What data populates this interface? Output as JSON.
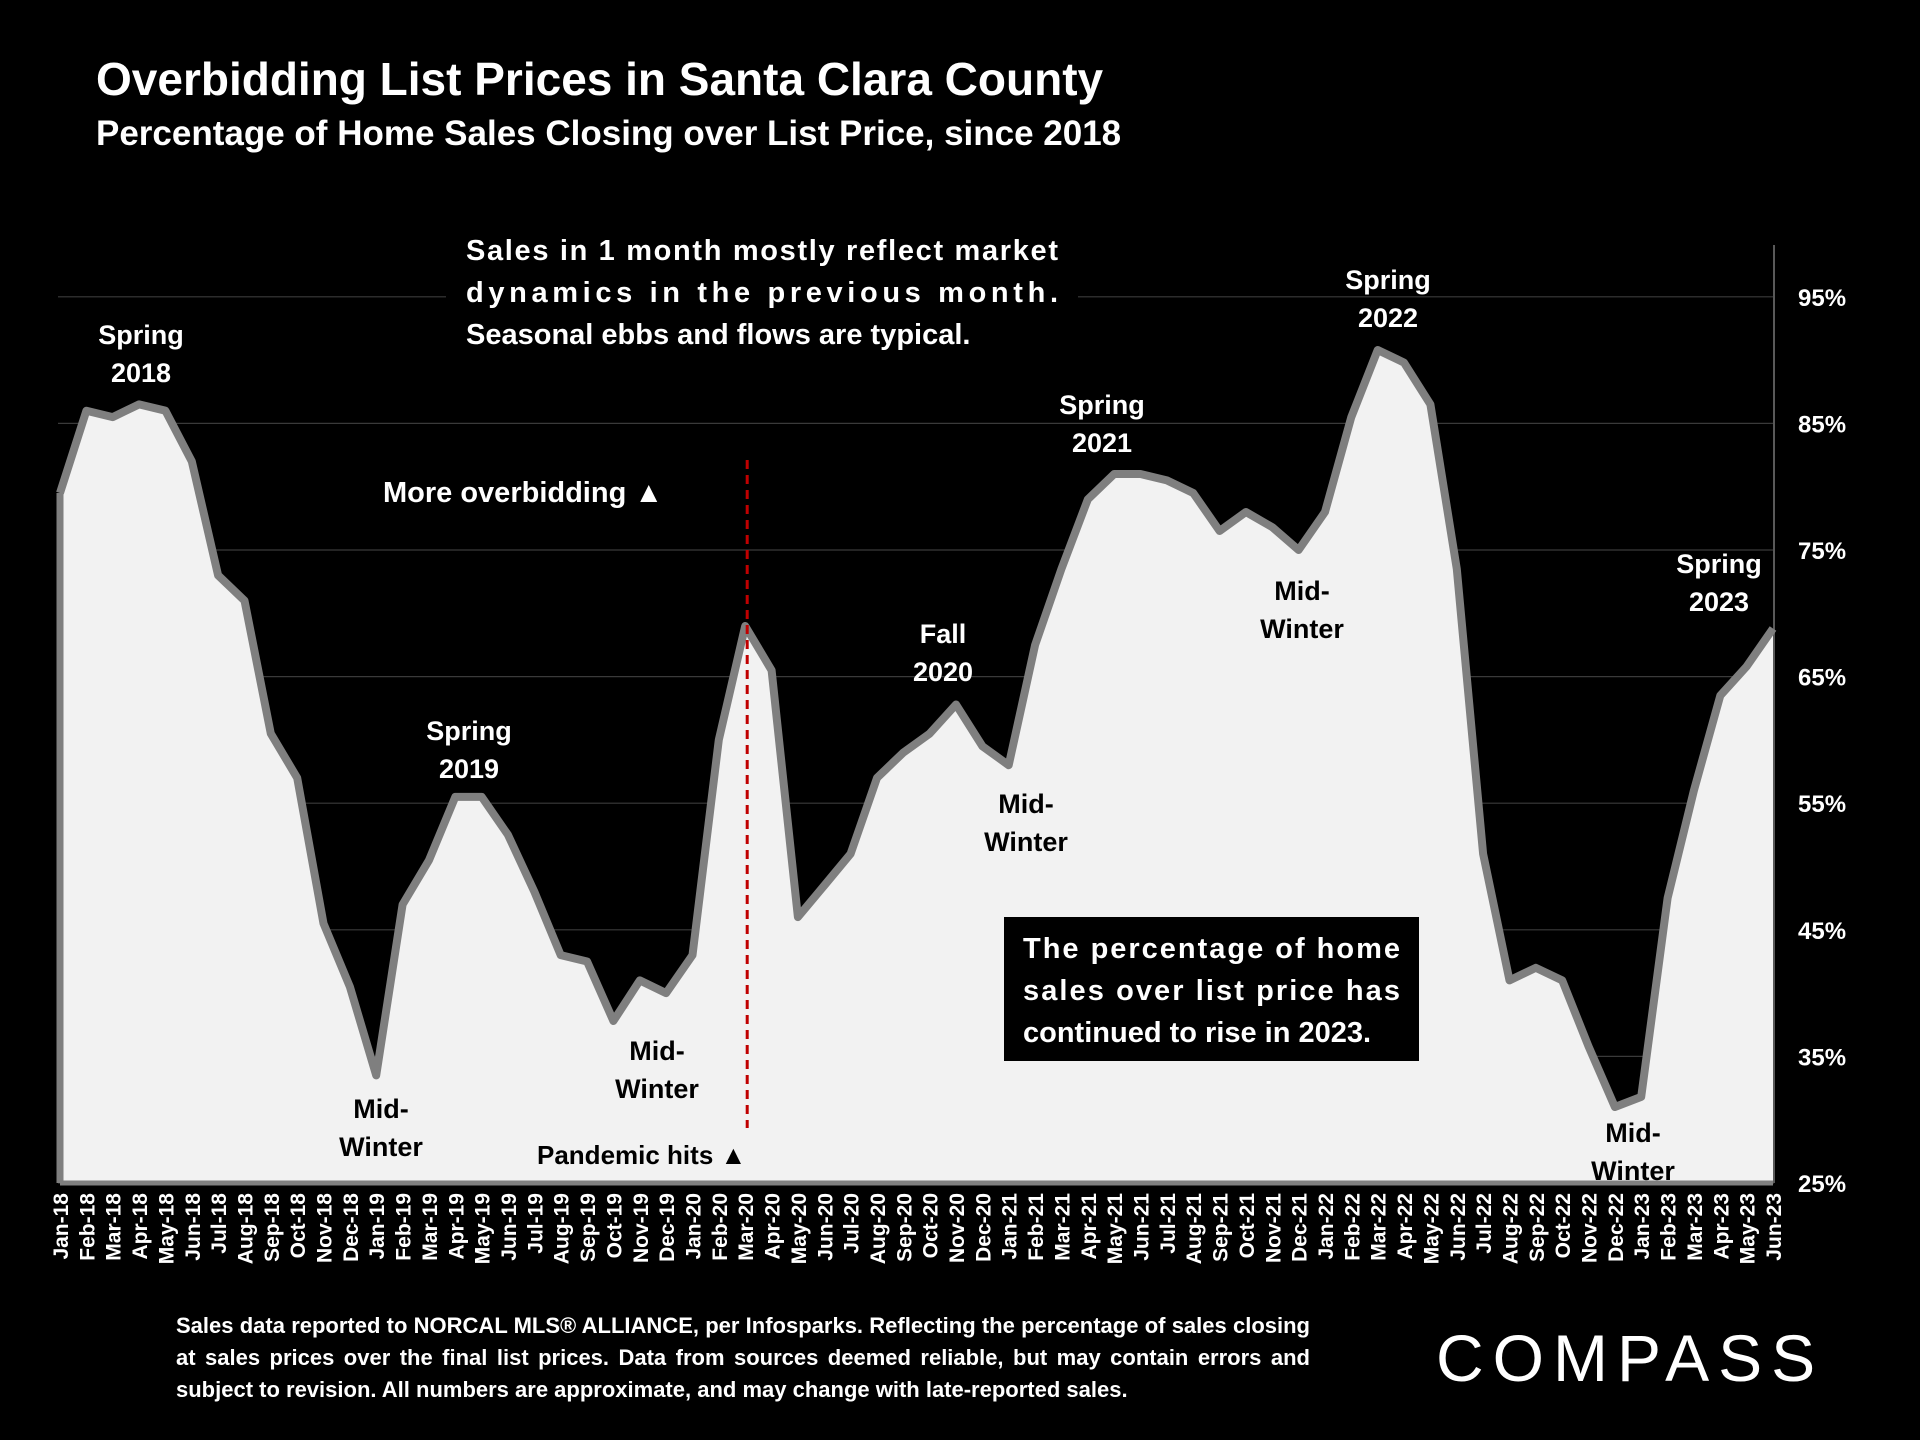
{
  "header": {
    "title": "Overbidding List Prices in Santa Clara County",
    "subtitle": "Percentage of Home Sales Closing over List Price, since 2018"
  },
  "footer": {
    "note": "Sales data reported to NORCAL MLS® ALLIANCE, per Infosparks. Reflecting the percentage of sales closing at sales prices over the final list prices. Data from sources deemed reliable, but may contain errors and subject to revision. All numbers are approximate, and may change with late-reported sales.",
    "brand": "COMPASS"
  },
  "colors": {
    "background": "#000000",
    "area": "#f2f2f2",
    "line": "#7f7f7f",
    "pandemic": "#c00000",
    "text": "#ffffff"
  },
  "chart_data": {
    "type": "area",
    "title": "Percentage of Home Sales Closing over List Price, since 2018",
    "xlabel": "",
    "ylabel": "",
    "ylim": [
      25,
      99
    ],
    "yticks": [
      25,
      35,
      45,
      55,
      65,
      75,
      85,
      95
    ],
    "ytick_labels": [
      "25%",
      "35%",
      "45%",
      "55%",
      "65%",
      "75%",
      "85%",
      "95%"
    ],
    "y_axis_side": "right",
    "grid": true,
    "categories": [
      "Jan-18",
      "Feb-18",
      "Mar-18",
      "Apr-18",
      "May-18",
      "Jun-18",
      "Jul-18",
      "Aug-18",
      "Sep-18",
      "Oct-18",
      "Nov-18",
      "Dec-18",
      "Jan-19",
      "Feb-19",
      "Mar-19",
      "Apr-19",
      "May-19",
      "Jun-19",
      "Jul-19",
      "Aug-19",
      "Sep-19",
      "Oct-19",
      "Nov-19",
      "Dec-19",
      "Jan-20",
      "Feb-20",
      "Mar-20",
      "Apr-20",
      "May-20",
      "Jun-20",
      "Jul-20",
      "Aug-20",
      "Sep-20",
      "Oct-20",
      "Nov-20",
      "Dec-20",
      "Jan-21",
      "Feb-21",
      "Mar-21",
      "Apr-21",
      "May-21",
      "Jun-21",
      "Jul-21",
      "Aug-21",
      "Sep-21",
      "Oct-21",
      "Nov-21",
      "Dec-21",
      "Jan-22",
      "Feb-22",
      "Mar-22",
      "Apr-22",
      "May-22",
      "Jun-22",
      "Jul-22",
      "Aug-22",
      "Sep-22",
      "Oct-22",
      "Nov-22",
      "Dec-22",
      "Jan-23",
      "Feb-23",
      "Mar-23",
      "Apr-23",
      "May-23",
      "Jun-23"
    ],
    "series": [
      {
        "name": "% of sales over list price",
        "values": [
          79.5,
          86.0,
          85.5,
          86.5,
          86.0,
          82.0,
          73.0,
          71.0,
          60.5,
          57.0,
          45.5,
          40.5,
          33.5,
          47.0,
          50.5,
          55.5,
          55.5,
          52.5,
          48.0,
          43.0,
          42.5,
          37.8,
          41.0,
          40.0,
          43.0,
          60.0,
          69.0,
          65.5,
          46.0,
          48.5,
          51.0,
          57.0,
          59.0,
          60.5,
          62.8,
          59.5,
          58.0,
          67.5,
          73.5,
          79.0,
          81.0,
          81.0,
          80.5,
          79.5,
          76.5,
          78.0,
          76.8,
          75.0,
          78.0,
          85.5,
          90.8,
          89.8,
          86.5,
          73.5,
          51.0,
          41.0,
          42.0,
          41.0,
          35.8,
          31.0,
          31.8,
          47.5,
          56.0,
          63.5,
          65.8,
          68.8
        ]
      }
    ],
    "annotations": [
      {
        "id": "spring-2018",
        "lines": [
          "Spring",
          "2018"
        ]
      },
      {
        "id": "mid-winter-1",
        "lines": [
          "Mid-",
          "Winter"
        ]
      },
      {
        "id": "spring-2019",
        "lines": [
          "Spring",
          "2019"
        ]
      },
      {
        "id": "mid-winter-2",
        "lines": [
          "Mid-",
          "Winter"
        ]
      },
      {
        "id": "fall-2020",
        "lines": [
          "Fall",
          "2020"
        ]
      },
      {
        "id": "mid-winter-3",
        "lines": [
          "Mid-",
          "Winter"
        ]
      },
      {
        "id": "spring-2021",
        "lines": [
          "Spring",
          "2021"
        ]
      },
      {
        "id": "mid-winter-4",
        "lines": [
          "Mid-",
          "Winter"
        ]
      },
      {
        "id": "spring-2022",
        "lines": [
          "Spring",
          "2022"
        ]
      },
      {
        "id": "spring-2023",
        "lines": [
          "Spring",
          "2023"
        ]
      },
      {
        "id": "mid-winter-5",
        "lines": [
          "Mid-",
          "Winter"
        ]
      },
      {
        "id": "more-overbidding",
        "lines": [
          "More overbidding ▲"
        ]
      },
      {
        "id": "pandemic-hits",
        "lines": [
          "Pandemic hits ▲"
        ]
      },
      {
        "id": "seasonal-note",
        "lines": [
          "Sales in 1 month mostly reflect market",
          "dynamics in the previous month.",
          "Seasonal ebbs and flows are typical."
        ]
      },
      {
        "id": "rise-2023-note",
        "lines": [
          "The percentage of home",
          "sales over list price has",
          "continued to rise in 2023."
        ]
      }
    ],
    "pandemic_marker_month": "Mar-20"
  }
}
